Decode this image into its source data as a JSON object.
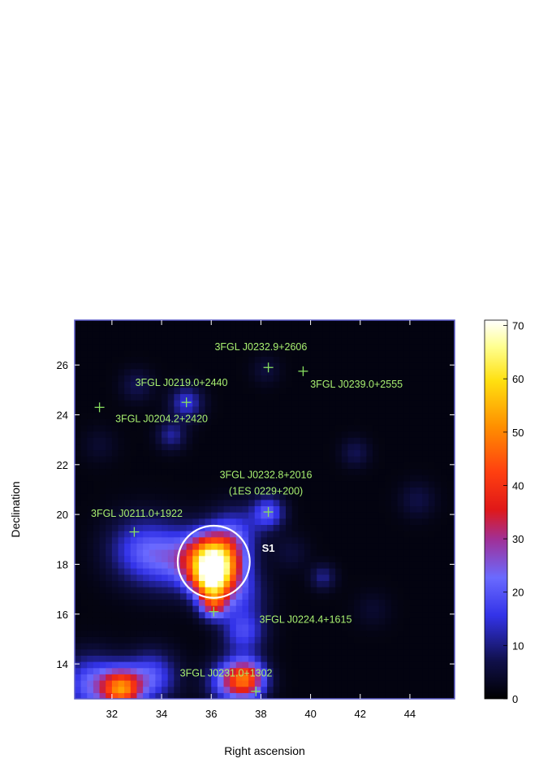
{
  "chart_data": {
    "type": "heatmap",
    "xlabel": "Right ascension",
    "ylabel": "Declination",
    "xlim": [
      30.5,
      45.8
    ],
    "ylim": [
      12.6,
      27.8
    ],
    "x_ticks": [
      32,
      34,
      36,
      38,
      40,
      42,
      44
    ],
    "y_ticks": [
      14,
      16,
      18,
      20,
      22,
      24,
      26
    ],
    "colorbar": {
      "range": [
        0,
        71
      ],
      "ticks": [
        0,
        10,
        20,
        30,
        40,
        50,
        60,
        70
      ]
    },
    "colors": {
      "frame": "#5b5bc8",
      "marker": "#88e060",
      "source_text": "#a8f070",
      "region": "#ffffff"
    },
    "blobs": [
      {
        "ra": 36.1,
        "dec": 18.1,
        "peak": 71,
        "sigma": 0.75
      },
      {
        "ra": 36.0,
        "dec": 17.3,
        "peak": 30,
        "sigma": 0.5
      },
      {
        "ra": 36.1,
        "dec": 16.4,
        "peak": 28,
        "sigma": 0.4
      },
      {
        "ra": 34.3,
        "dec": 18.3,
        "peak": 16,
        "sigma": 0.9
      },
      {
        "ra": 33.0,
        "dec": 18.6,
        "peak": 13,
        "sigma": 0.9
      },
      {
        "ra": 37.0,
        "dec": 19.4,
        "peak": 12,
        "sigma": 0.7
      },
      {
        "ra": 38.3,
        "dec": 20.1,
        "peak": 18,
        "sigma": 0.45
      },
      {
        "ra": 37.2,
        "dec": 16.8,
        "peak": 12,
        "sigma": 0.7
      },
      {
        "ra": 37.3,
        "dec": 15.3,
        "peak": 16,
        "sigma": 0.6
      },
      {
        "ra": 37.4,
        "dec": 13.4,
        "peak": 40,
        "sigma": 0.55
      },
      {
        "ra": 36.6,
        "dec": 13.3,
        "peak": 16,
        "sigma": 0.6
      },
      {
        "ra": 32.4,
        "dec": 13.0,
        "peak": 42,
        "sigma": 0.55
      },
      {
        "ra": 31.2,
        "dec": 13.2,
        "peak": 20,
        "sigma": 0.8
      },
      {
        "ra": 33.6,
        "dec": 13.5,
        "peak": 18,
        "sigma": 0.7
      },
      {
        "ra": 35.0,
        "dec": 24.5,
        "peak": 14,
        "sigma": 0.45
      },
      {
        "ra": 34.4,
        "dec": 23.2,
        "peak": 10,
        "sigma": 0.4
      },
      {
        "ra": 33.0,
        "dec": 25.2,
        "peak": 6,
        "sigma": 0.45
      },
      {
        "ra": 40.5,
        "dec": 17.5,
        "peak": 9,
        "sigma": 0.35
      },
      {
        "ra": 41.8,
        "dec": 22.5,
        "peak": 6,
        "sigma": 0.4
      },
      {
        "ra": 44.3,
        "dec": 20.6,
        "peak": 5,
        "sigma": 0.5
      },
      {
        "ra": 38.2,
        "dec": 25.8,
        "peak": 4,
        "sigma": 0.4
      },
      {
        "ra": 39.2,
        "dec": 18.5,
        "peak": 4,
        "sigma": 0.5
      },
      {
        "ra": 42.5,
        "dec": 16.2,
        "peak": 3,
        "sigma": 0.5
      },
      {
        "ra": 31.5,
        "dec": 22.8,
        "peak": 3,
        "sigma": 0.5
      }
    ],
    "sources": [
      {
        "name": "3FGL J0232.9+2606",
        "ra": 38.3,
        "dec": 25.9,
        "label_ra": 38.0,
        "label_dec": 26.6,
        "anchor": "middle"
      },
      {
        "name": "3FGL J0239.0+2555",
        "ra": 39.7,
        "dec": 25.75,
        "label_ra": 41.85,
        "label_dec": 25.1,
        "anchor": "middle"
      },
      {
        "name": "3FGL J0219.0+2440",
        "ra": 35.0,
        "dec": 24.5,
        "label_ra": 34.8,
        "label_dec": 25.15,
        "anchor": "middle"
      },
      {
        "name": "3FGL J0204.2+2420",
        "ra": 31.5,
        "dec": 24.3,
        "label_ra": 34.0,
        "label_dec": 23.7,
        "anchor": "middle"
      },
      {
        "name": "3FGL J0232.8+2016",
        "ra": 38.3,
        "dec": 20.1,
        "label_ra": 38.2,
        "label_dec": 21.45,
        "anchor": "middle"
      },
      {
        "name": "3FGL J0211.0+1922",
        "ra": 32.9,
        "dec": 19.3,
        "label_ra": 33.0,
        "label_dec": 19.9,
        "anchor": "middle"
      },
      {
        "name": "3FGL J0224.4+1615",
        "ra": 36.1,
        "dec": 16.1,
        "label_ra": 39.8,
        "label_dec": 15.65,
        "anchor": "middle"
      },
      {
        "name": "3FGL J0231.0+1302",
        "ra": 37.8,
        "dec": 12.9,
        "label_ra": 36.6,
        "label_dec": 13.5,
        "anchor": "middle"
      }
    ],
    "annotations": [
      {
        "text": "(1ES 0229+200)",
        "ra": 38.2,
        "dec": 20.8
      }
    ],
    "region": {
      "label": "S1",
      "ra": 36.1,
      "dec": 18.1,
      "radius_deg": 1.45,
      "label_ra": 38.3,
      "label_dec": 18.5
    }
  }
}
